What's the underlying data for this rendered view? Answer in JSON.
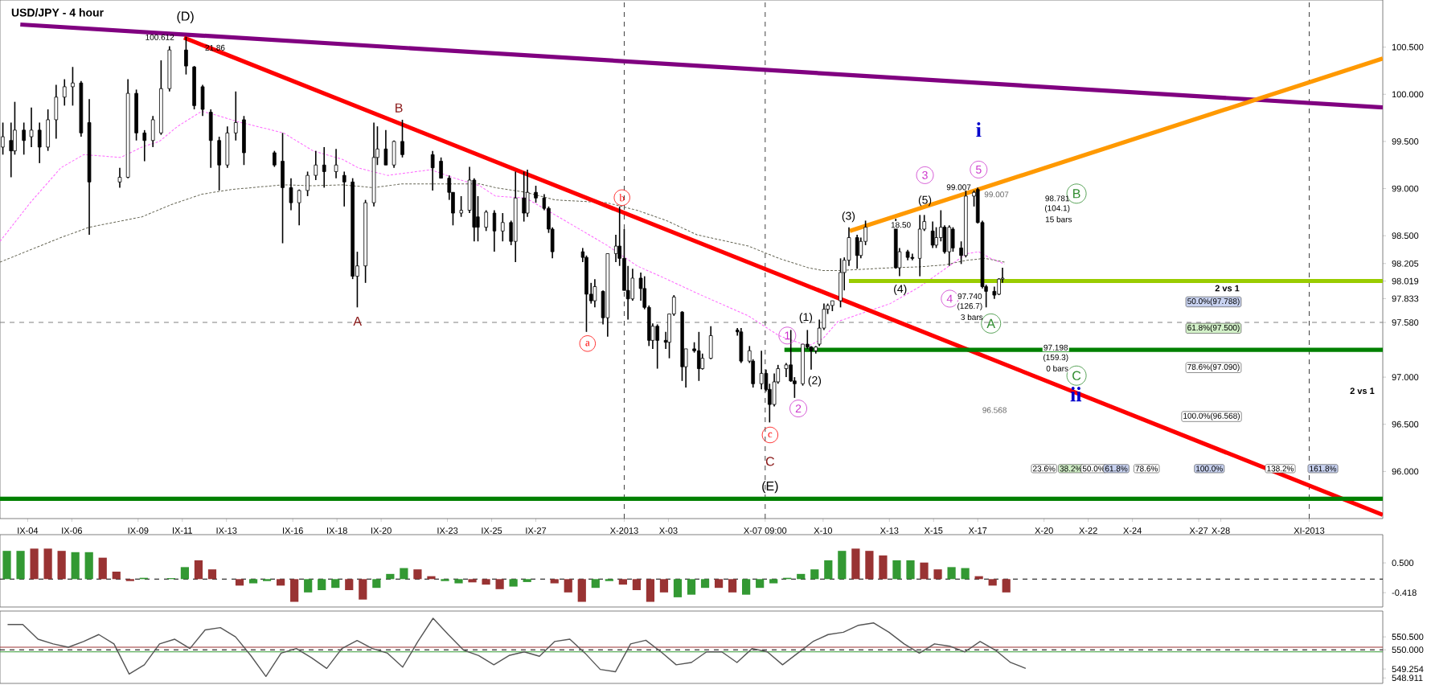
{
  "chart_data": [
    {
      "type": "candlestick",
      "title": "USD/JPY - 4 hour",
      "x": [
        "2013-09-02T21:00",
        "2013-09-03T06:00",
        "2013-09-03T10:00",
        "2013-09-03T20:00",
        "2013-09-04T04:00",
        "2013-09-04T13:00",
        "2013-09-04T22:00",
        "2013-09-05T07:00",
        "2013-09-05T16:00",
        "2013-09-06T01:00",
        "2013-09-06T10:00",
        "2013-09-06T19:00",
        "2013-09-08T04:00",
        "2013-09-08T13:00",
        "2013-09-08T22:00",
        "2013-09-09T07:00",
        "2013-09-09T16:00",
        "2013-09-10T01:00",
        "2013-09-10T10:00",
        "2013-09-11T04:00",
        "2013-09-11T13:00",
        "2013-09-11T22:00",
        "2013-09-12T07:00",
        "2013-09-12T16:00",
        "2013-09-13T01:00",
        "2013-09-13T10:00",
        "2013-09-13T19:00",
        "2013-09-15T04:00",
        "2013-09-15T13:00",
        "2013-09-15T22:00",
        "2013-09-16T07:00",
        "2013-09-16T16:00",
        "2013-09-17T01:00",
        "2013-09-17T10:00",
        "2013-09-17T23:00",
        "2013-09-18T08:00",
        "2013-09-18T17:00",
        "2013-09-18T22:00",
        "2013-09-19T07:00",
        "2013-09-19T16:00",
        "2013-09-19T20:00",
        "2013-09-20T05:00",
        "2013-09-20T14:00",
        "2013-09-20T23:00",
        "2013-09-22T08:00",
        "2013-09-22T17:00",
        "2013-09-23T02:00",
        "2013-09-23T06:00",
        "2013-09-23T15:00",
        "2013-09-24T00:00",
        "2013-09-24T05:00",
        "2013-09-24T09:00",
        "2013-09-24T18:00",
        "2013-09-25T03:00",
        "2013-09-25T12:00",
        "2013-09-25T21:00",
        "2013-09-26T02:00",
        "2013-09-26T11:00",
        "2013-09-26T15:00",
        "2013-09-27T00:00",
        "2013-09-27T09:00",
        "2013-09-27T14:00",
        "2013-09-27T18:00",
        "2013-09-29T03:00",
        "2013-09-29T07:00",
        "2013-09-29T12:00",
        "2013-09-29T16:00",
        "2013-09-30T01:00",
        "2013-09-30T06:00",
        "2013-09-30T15:00",
        "2013-09-30T19:00",
        "2013-10-01T00:00",
        "2013-10-01T04:00",
        "2013-10-01T09:00",
        "2013-10-01T18:00",
        "2013-10-01T22:00",
        "2013-10-02T03:00",
        "2013-10-02T07:00",
        "2013-10-02T12:00",
        "2013-10-02T21:00",
        "2013-10-03T01:00",
        "2013-10-03T06:00",
        "2013-10-03T15:00",
        "2013-10-03T19:00",
        "2013-10-04T04:00",
        "2013-10-04T09:00",
        "2013-10-04T13:00",
        "2013-10-04T22:00",
        "2013-10-06T03:00",
        "2013-10-06T07:00",
        "2013-10-06T16:00",
        "2013-10-06T20:00",
        "2013-10-07T05:00",
        "2013-10-07T10:00",
        "2013-10-07T14:00",
        "2013-10-07T19:00",
        "2013-10-07T23:00",
        "2013-10-08T08:00",
        "2013-10-08T13:00",
        "2013-10-08T17:00",
        "2013-10-09T02:00",
        "2013-10-09T07:00",
        "2013-10-09T11:00",
        "2013-10-09T16:00",
        "2013-10-09T20:00",
        "2013-10-10T01:00",
        "2013-10-10T05:00",
        "2013-10-10T10:00",
        "2013-10-10T19:00",
        "2013-10-10T23:00",
        "2013-10-11T04:00",
        "2013-10-11T13:00",
        "2013-10-11T17:00",
        "2013-10-11T22:00",
        "2013-10-13T07:00",
        "2013-10-13T11:00",
        "2013-10-13T20:00",
        "2013-10-14T01:00",
        "2013-10-14T09:00",
        "2013-10-14T14:00",
        "2013-10-14T23:00",
        "2013-10-15T03:00",
        "2013-10-15T08:00",
        "2013-10-15T12:00",
        "2013-10-15T17:00",
        "2013-10-15T21:00",
        "2013-10-16T06:00",
        "2013-10-16T11:00",
        "2013-10-16T20:00",
        "2013-10-17T00:00",
        "2013-10-17T05:00",
        "2013-10-17T09:00",
        "2013-10-17T18:00",
        "2013-10-17T23:00",
        "2013-10-18T03:00"
      ],
      "ohlc": [
        [
          99.44,
          99.7,
          99.36,
          99.55
        ],
        [
          99.51,
          99.7,
          99.12,
          99.4
        ],
        [
          99.4,
          99.92,
          99.36,
          99.62
        ],
        [
          99.62,
          99.7,
          99.36,
          99.51
        ],
        [
          99.55,
          99.86,
          99.44,
          99.62
        ],
        [
          99.62,
          99.7,
          99.27,
          99.44
        ],
        [
          99.44,
          99.84,
          99.4,
          99.73
        ],
        [
          99.73,
          100.1,
          99.53,
          99.97
        ],
        [
          99.97,
          100.16,
          99.88,
          100.08
        ],
        [
          100.08,
          100.29,
          99.88,
          100.12
        ],
        [
          100.12,
          100.14,
          99.55,
          99.59
        ],
        [
          99.7,
          99.95,
          98.51,
          99.07
        ],
        [
          99.07,
          99.22,
          99.01,
          99.12
        ],
        [
          99.12,
          100.16,
          99.11,
          100.01
        ],
        [
          100.01,
          100.05,
          99.51,
          99.59
        ],
        [
          99.59,
          99.62,
          99.29,
          99.51
        ],
        [
          99.51,
          99.77,
          99.44,
          99.73
        ],
        [
          99.59,
          100.36,
          99.57,
          100.06
        ],
        [
          100.06,
          100.51,
          100.03,
          100.47
        ],
        [
          100.47,
          100.61,
          100.21,
          100.3
        ],
        [
          100.29,
          100.3,
          99.84,
          99.88
        ],
        [
          100.08,
          100.1,
          99.77,
          99.84
        ],
        [
          99.81,
          99.84,
          99.22,
          99.51
        ],
        [
          99.51,
          99.55,
          98.98,
          99.25
        ],
        [
          99.25,
          99.66,
          99.22,
          99.59
        ],
        [
          99.59,
          100.03,
          99.51,
          99.7
        ],
        [
          99.73,
          99.77,
          99.25,
          99.38
        ],
        [
          99.38,
          99.4,
          99.23,
          99.25
        ],
        [
          99.29,
          99.59,
          98.42,
          99.01
        ],
        [
          99.01,
          99.11,
          98.77,
          98.85
        ],
        [
          98.85,
          98.99,
          98.61,
          98.98
        ],
        [
          98.98,
          99.18,
          98.92,
          99.14
        ],
        [
          99.14,
          99.4,
          99.09,
          99.25
        ],
        [
          99.25,
          99.44,
          99.01,
          99.18
        ],
        [
          99.18,
          99.42,
          99.11,
          99.25
        ],
        [
          99.14,
          99.18,
          98.81,
          99.07
        ],
        [
          99.07,
          99.11,
          98.04,
          98.07
        ],
        [
          98.07,
          98.33,
          97.74,
          98.18
        ],
        [
          98.18,
          98.88,
          98.0,
          98.85
        ],
        [
          98.85,
          99.7,
          98.81,
          99.33
        ],
        [
          99.33,
          99.66,
          99.25,
          99.42
        ],
        [
          99.42,
          99.62,
          99.25,
          99.25
        ],
        [
          99.25,
          99.51,
          99.22,
          99.5
        ],
        [
          99.5,
          99.73,
          99.33,
          99.36
        ],
        [
          99.36,
          99.4,
          98.98,
          99.22
        ],
        [
          99.29,
          99.33,
          99.11,
          99.11
        ],
        [
          99.11,
          99.14,
          98.88,
          98.96
        ],
        [
          98.96,
          98.96,
          98.61,
          98.74
        ],
        [
          98.74,
          98.92,
          98.7,
          98.77
        ],
        [
          98.77,
          99.23,
          98.74,
          99.09
        ],
        [
          99.09,
          99.11,
          98.44,
          98.59
        ],
        [
          98.7,
          98.92,
          98.44,
          98.59
        ],
        [
          98.59,
          98.77,
          98.55,
          98.75
        ],
        [
          98.74,
          98.77,
          98.33,
          98.55
        ],
        [
          98.55,
          98.74,
          98.44,
          98.64
        ],
        [
          98.64,
          98.66,
          98.4,
          98.44
        ],
        [
          98.44,
          99.18,
          98.22,
          98.9
        ],
        [
          98.9,
          99.18,
          98.65,
          98.74
        ],
        [
          98.74,
          99.2,
          98.7,
          98.96
        ],
        [
          98.96,
          99.03,
          98.85,
          98.9
        ],
        [
          98.9,
          98.94,
          98.77,
          98.79
        ],
        [
          98.79,
          98.81,
          98.53,
          98.57
        ],
        [
          98.57,
          98.59,
          98.26,
          98.33
        ],
        [
          98.33,
          98.37,
          98.22,
          98.27
        ],
        [
          98.27,
          98.29,
          97.48,
          97.88
        ],
        [
          97.88,
          98.0,
          97.78,
          97.81
        ],
        [
          97.81,
          98.04,
          97.74,
          97.96
        ],
        [
          97.91,
          97.92,
          97.56,
          97.63
        ],
        [
          97.63,
          98.31,
          97.43,
          98.31
        ],
        [
          98.31,
          98.51,
          98.22,
          98.39
        ],
        [
          98.39,
          98.81,
          98.18,
          98.26
        ],
        [
          98.26,
          98.57,
          97.92,
          97.92
        ],
        [
          97.92,
          98.18,
          97.61,
          97.83
        ],
        [
          97.83,
          98.15,
          97.81,
          98.05
        ],
        [
          98.05,
          98.11,
          97.81,
          97.94
        ],
        [
          97.94,
          98.07,
          97.72,
          97.74
        ],
        [
          97.74,
          97.76,
          97.33,
          97.39
        ],
        [
          97.39,
          97.57,
          97.3,
          97.54
        ],
        [
          97.54,
          97.56,
          97.09,
          97.39
        ],
        [
          97.39,
          97.48,
          97.3,
          97.37
        ],
        [
          97.37,
          97.67,
          97.2,
          97.67
        ],
        [
          97.67,
          97.87,
          97.65,
          97.85
        ],
        [
          97.69,
          97.7,
          96.96,
          97.11
        ],
        [
          97.11,
          97.3,
          96.89,
          97.3
        ],
        [
          97.3,
          97.37,
          97.26,
          97.28
        ],
        [
          97.28,
          97.48,
          96.96,
          97.09
        ],
        [
          97.09,
          97.25,
          97.08,
          97.2
        ],
        [
          97.2,
          97.54,
          97.19,
          97.44
        ],
        [
          97.5,
          97.52,
          97.44,
          97.48
        ],
        [
          97.48,
          97.52,
          97.15,
          97.17
        ],
        [
          97.17,
          97.33,
          97.15,
          97.28
        ],
        [
          97.17,
          97.19,
          96.89,
          96.93
        ],
        [
          96.93,
          97.28,
          96.87,
          97.04
        ],
        [
          97.04,
          97.08,
          96.85,
          96.87
        ],
        [
          96.87,
          96.93,
          96.52,
          96.71
        ],
        [
          96.71,
          97.04,
          96.69,
          96.95
        ],
        [
          96.95,
          97.13,
          96.93,
          97.09
        ],
        [
          97.09,
          97.15,
          97.0,
          97.13
        ],
        [
          97.13,
          97.5,
          96.95,
          96.96
        ],
        [
          96.96,
          97.0,
          96.78,
          96.93
        ],
        [
          96.93,
          97.35,
          96.91,
          97.35
        ],
        [
          97.35,
          97.5,
          97.3,
          97.32
        ],
        [
          97.32,
          97.33,
          97.08,
          97.28
        ],
        [
          97.28,
          97.33,
          97.25,
          97.32
        ],
        [
          97.35,
          97.61,
          97.33,
          97.52
        ],
        [
          97.52,
          97.78,
          97.5,
          97.72
        ],
        [
          97.72,
          97.78,
          97.67,
          97.76
        ],
        [
          97.76,
          97.81,
          97.7,
          97.81
        ],
        [
          97.81,
          98.26,
          97.74,
          98.11
        ],
        [
          98.11,
          98.27,
          97.92,
          98.24
        ],
        [
          98.24,
          98.59,
          98.18,
          98.48
        ],
        [
          98.48,
          98.51,
          98.15,
          98.29
        ],
        [
          98.29,
          98.48,
          98.26,
          98.44
        ],
        [
          98.44,
          98.66,
          98.4,
          98.59
        ],
        [
          98.64,
          98.68,
          98.15,
          98.16
        ],
        [
          98.16,
          98.37,
          98.07,
          98.33
        ],
        [
          98.33,
          98.35,
          98.24,
          98.27
        ],
        [
          98.27,
          98.31,
          98.24,
          98.26
        ],
        [
          98.26,
          98.72,
          98.07,
          98.57
        ],
        [
          98.57,
          98.72,
          98.55,
          98.65
        ],
        [
          98.55,
          98.65,
          98.37,
          98.4
        ],
        [
          98.4,
          98.59,
          98.37,
          98.48
        ],
        [
          98.48,
          98.77,
          98.44,
          98.59
        ],
        [
          98.59,
          98.61,
          98.31,
          98.33
        ],
        [
          98.33,
          98.61,
          98.18,
          98.59
        ],
        [
          98.57,
          98.59,
          98.33,
          98.37
        ],
        [
          98.37,
          98.44,
          98.2,
          98.29
        ],
        [
          98.29,
          98.98,
          98.27,
          98.92
        ],
        [
          98.92,
          98.98,
          98.81,
          98.96
        ],
        [
          98.99,
          99.01,
          98.63,
          98.64
        ],
        [
          98.64,
          98.66,
          97.94,
          97.96
        ],
        [
          97.96,
          97.98,
          97.74,
          97.91
        ],
        [
          97.91,
          97.96,
          97.83,
          97.87
        ],
        [
          97.88,
          98.05,
          97.87,
          98.04
        ],
        [
          98.04,
          98.16,
          98.0,
          98.05
        ]
      ],
      "series": [
        {
          "type": "line",
          "color": "#ff66ff",
          "line_style": "dashed",
          "x": [
            "2013-09-02T18:00",
            "2013-09-04T03:00",
            "2013-09-05T12:00",
            "2013-09-06T13:00",
            "2013-09-08T05:00",
            "2013-09-09T04:00",
            "2013-09-09T23:00",
            "2013-09-10T19:00",
            "2013-09-11T21:00",
            "2013-09-12T16:00",
            "2013-09-13T12:00",
            "2013-09-15T14:00",
            "2013-09-16T22:00",
            "2013-09-18T06:00",
            "2013-09-18T23:00",
            "2013-09-19T15:00",
            "2013-09-20T07:00",
            "2013-09-22T06:00",
            "2013-09-23T08:00",
            "2013-09-24T11:00",
            "2013-09-25T04:00",
            "2013-09-26T13:00",
            "2013-09-27T21:00",
            "2013-09-30T05:00",
            "2013-10-01T14:00",
            "2013-10-02T22:00",
            "2013-10-04T07:00",
            "2013-10-06T15:00",
            "2013-10-08T00:00",
            "2013-10-09T08:00",
            "2013-10-10T00:00",
            "2013-10-10T16:00",
            "2013-10-13T01:00",
            "2013-10-14T09:00",
            "2013-10-15T17:00",
            "2013-10-16T12:00",
            "2013-10-17T01:00",
            "2013-10-17T14:00",
            "2013-10-18T05:00"
          ],
          "values": [
            98.44,
            98.85,
            99.22,
            99.36,
            99.33,
            99.44,
            99.5,
            99.66,
            99.82,
            99.77,
            99.71,
            99.59,
            99.4,
            99.31,
            99.22,
            null,
            99.14,
            99.2,
            99.11,
            99.03,
            98.92,
            98.9,
            98.72,
            98.4,
            98.18,
            98.04,
            97.89,
            97.65,
            97.44,
            97.33,
            97.41,
            97.59,
            97.78,
            97.96,
            98.18,
            98.31,
            98.33,
            98.26,
            98.2
          ]
        },
        {
          "type": "line",
          "color": "#666655",
          "line_style": "dashed",
          "x": [
            "2013-09-02T18:00",
            "2013-09-04T03:00",
            "2013-09-05T12:00",
            "2013-09-06T19:00",
            "2013-09-09T04:00",
            "2013-09-10T12:00",
            "2013-09-11T21:00",
            "2013-09-13T05:00",
            "2013-09-15T14:00",
            "2013-09-16T22:00",
            "2013-09-18T06:00",
            "2013-09-19T15:00",
            "2013-09-20T23:00",
            "2013-09-23T08:00",
            "2013-09-24T11:00",
            "2013-09-25T04:00",
            "2013-09-26T13:00",
            "2013-09-27T21:00",
            "2013-09-30T05:00",
            "2013-10-01T14:00",
            "2013-10-02T22:00",
            "2013-10-04T07:00",
            "2013-10-06T15:00",
            "2013-10-08T00:00",
            "2013-10-09T08:00",
            "2013-10-10T00:00",
            "2013-10-10T16:00",
            "2013-10-13T01:00",
            "2013-10-14T09:00",
            "2013-10-15T12:00",
            "2013-10-16T12:00",
            "2013-10-17T08:00",
            "2013-10-18T05:00"
          ],
          "values": [
            98.22,
            98.35,
            98.48,
            98.59,
            98.7,
            98.83,
            98.94,
            98.99,
            99.04,
            99.03,
            99.04,
            99.01,
            99.05,
            99.05,
            99.05,
            99.01,
            98.96,
            98.88,
            98.85,
            98.77,
            98.66,
            98.51,
            98.39,
            98.26,
            98.16,
            98.13,
            98.13,
            98.16,
            98.17,
            98.19,
            98.24,
            98.26,
            98.22
          ]
        },
        {
          "type": "line",
          "color": "#800080",
          "line_style": "solid",
          "x": [
            "2013-09-03T16:00",
            "2013-11-04T08:00"
          ],
          "values": [
            100.74,
            99.86
          ]
        },
        {
          "type": "line",
          "color": "#ff0000",
          "line_style": "solid",
          "x": [
            "2013-09-11T02:00",
            "2013-11-04T08:00"
          ],
          "values": [
            100.6,
            95.54
          ]
        },
        {
          "type": "line",
          "color": "#ff9900",
          "line_style": "solid",
          "x": [
            "2013-10-11T05:00",
            "2013-11-04T08:00"
          ],
          "values": [
            98.55,
            100.38
          ]
        },
        {
          "type": "line",
          "color": "#99cc00",
          "line_style": "solid",
          "x": [
            "2013-10-11T04:00",
            "2013-11-04T08:00"
          ],
          "values": [
            98.02,
            98.02
          ]
        },
        {
          "type": "line",
          "color": "#008000",
          "line_style": "solid",
          "x": [
            "2013-10-08T06:00",
            "2013-11-04T08:00"
          ],
          "values": [
            97.29,
            97.29
          ]
        },
        {
          "type": "line",
          "color": "#008000",
          "line_style": "solid",
          "x": [
            "2013-09-02T18:00",
            "2013-11-04T08:00"
          ],
          "values": [
            95.71,
            95.71
          ]
        }
      ],
      "xlim": [
        "2013-09-02T18:00",
        "2013-11-04T08:00"
      ],
      "ylim": [
        95.5,
        101.0
      ],
      "xticks": [
        {
          "value": "2013-09-04",
          "label": "IX-04"
        },
        {
          "value": "2013-09-06",
          "label": "IX-06"
        },
        {
          "value": "2013-09-09",
          "label": "IX-09"
        },
        {
          "value": "2013-09-11",
          "label": "IX-11"
        },
        {
          "value": "2013-09-13",
          "label": "IX-13"
        },
        {
          "value": "2013-09-16",
          "label": "IX-16"
        },
        {
          "value": "2013-09-18",
          "label": "IX-18"
        },
        {
          "value": "2013-09-20",
          "label": "IX-20"
        },
        {
          "value": "2013-09-23",
          "label": "IX-23"
        },
        {
          "value": "2013-09-25",
          "label": "IX-25"
        },
        {
          "value": "2013-09-27",
          "label": "IX-27"
        },
        {
          "value": "2013-10-01",
          "label": "X-2013"
        },
        {
          "value": "2013-10-03",
          "label": "X-03"
        },
        {
          "value": "2013-10-07T09:00",
          "label": "X-07 09:00"
        },
        {
          "value": "2013-10-10",
          "label": "X-10"
        },
        {
          "value": "2013-10-13",
          "label": "X-13"
        },
        {
          "value": "2013-10-15",
          "label": "X-15"
        },
        {
          "value": "2013-10-17",
          "label": "X-17"
        },
        {
          "value": "2013-10-20",
          "label": "X-20"
        },
        {
          "value": "2013-10-22",
          "label": "X-22"
        },
        {
          "value": "2013-10-24",
          "label": "X-24"
        },
        {
          "value": "2013-10-27",
          "label": "X-27"
        },
        {
          "value": "2013-10-28",
          "label": "X-28"
        },
        {
          "value": "2013-11-01",
          "label": "XI-2013"
        }
      ],
      "yticks": [
        {
          "value": 96,
          "label": "96.000"
        },
        {
          "value": 96.5,
          "label": "96.500"
        },
        {
          "value": 97,
          "label": "97.000"
        },
        {
          "value": 97.58,
          "label": "97.580"
        },
        {
          "value": 97.833,
          "label": "97.833"
        },
        {
          "value": 98.019,
          "label": "98.019"
        },
        {
          "value": 98.205,
          "label": "98.205"
        },
        {
          "value": 98.5,
          "label": "98.500"
        },
        {
          "value": 99,
          "label": "99.000"
        },
        {
          "value": 99.5,
          "label": "99.500"
        },
        {
          "value": 100,
          "label": "100.000"
        },
        {
          "value": 100.5,
          "label": "100.500"
        }
      ],
      "ref_lines": [
        {
          "axis": "y",
          "value": 97.58,
          "color": "#808080",
          "line_style": "dashed"
        },
        {
          "axis": "x",
          "value": "2013-10-01",
          "color": "#404040",
          "line_style": "dashed"
        },
        {
          "axis": "x",
          "value": "2013-10-07T09:00",
          "color": "#404040",
          "line_style": "dashed"
        },
        {
          "axis": "x",
          "value": "2013-11-01",
          "color": "#404040",
          "line_style": "dashed"
        }
      ],
      "annotations": [
        "(D)",
        "100.612",
        "21.86",
        "A",
        "B",
        "a",
        "b",
        "c",
        "C",
        "(E)",
        "(1)",
        "(2)",
        "(3)",
        "(4)",
        "(5)",
        "1",
        "2",
        "3",
        "4",
        "5",
        "i",
        "ii",
        "A",
        "B",
        "C",
        "18.50",
        "99.007",
        "99.007",
        "98.781",
        "(104.1)",
        "15 bars",
        "97.740",
        "(126.7)",
        "3 bars",
        "97.198",
        "(159.3)",
        "0 bars",
        "96.568",
        "50.0%(97.788)",
        "61.8%(97.500)",
        "78.6%(97.090)",
        "100.0%(96.568)",
        "2 vs 1",
        "2 vs 1",
        "23.6%",
        "38.2%",
        "50.0%",
        "61.8%",
        "78.6%",
        "100.0%",
        "138.2%",
        "161.8%"
      ]
    },
    {
      "type": "bar",
      "categories": [
        null,
        null,
        null,
        null,
        null,
        null,
        null,
        null,
        null,
        null,
        null,
        null,
        null,
        null,
        null,
        null,
        null,
        null,
        null,
        null,
        null,
        null,
        null,
        null,
        null,
        null,
        null,
        null,
        null,
        null,
        null,
        null,
        null,
        null,
        null,
        null,
        null,
        null,
        null,
        null,
        null,
        null,
        null,
        null,
        null,
        null,
        null,
        null,
        null,
        null,
        null,
        null,
        null,
        null,
        null,
        null,
        null,
        null,
        null,
        null,
        null,
        null,
        null,
        null,
        null,
        null,
        null,
        null,
        null,
        null,
        null,
        null,
        null,
        null,
        null,
        null,
        null,
        null,
        null,
        null,
        null,
        null,
        null,
        null,
        null,
        null,
        null,
        null,
        null,
        null,
        null,
        null,
        null,
        null,
        null,
        null,
        null,
        null,
        null,
        null,
        null
      ],
      "values": [
        0.87,
        0.87,
        0.94,
        0.94,
        0.87,
        0.83,
        0.83,
        0.66,
        0.23,
        -0.06,
        0.04,
        0,
        0.03,
        0.37,
        0.58,
        0.3,
        null,
        -0.2,
        -0.13,
        -0.06,
        -0.2,
        -0.7,
        -0.41,
        -0.34,
        -0.27,
        -0.34,
        -0.63,
        -0.27,
        0.16,
        0.34,
        0.3,
        0.09,
        -0.06,
        -0.13,
        -0.1,
        -0.17,
        -0.31,
        -0.23,
        -0.09,
        0,
        -0.13,
        -0.41,
        -0.7,
        -0.27,
        -0.06,
        -0.17,
        -0.34,
        -0.7,
        -0.41,
        -0.56,
        -0.48,
        -0.27,
        -0.27,
        -0.41,
        -0.48,
        -0.27,
        -0.13,
        0.04,
        0.16,
        0.3,
        0.58,
        0.87,
        0.94,
        0.87,
        0.73,
        0.58,
        0.58,
        0.51,
        0.3,
        0.37,
        0.34,
        0.09,
        -0.2,
        -0.41,
        null,
        null,
        null,
        null,
        null,
        null,
        null,
        null,
        null,
        null,
        null,
        null,
        null,
        null,
        null,
        null,
        null,
        null,
        null,
        null,
        null,
        null,
        null,
        null,
        null,
        null,
        null
      ],
      "colors": [
        "#339933",
        "#339933",
        "#993333",
        "#993333",
        "#993333",
        "#339933",
        "#339933",
        "#993333",
        "#993333",
        "#993333",
        "#339933",
        "#339933",
        "#339933",
        "#339933",
        "#993333",
        "#993333",
        "#993333",
        "#993333",
        "#339933",
        "#339933",
        "#993333",
        "#993333",
        "#339933",
        "#339933",
        "#339933",
        "#993333",
        "#993333",
        "#339933",
        "#339933",
        "#339933",
        "#993333",
        "#993333",
        "#339933",
        "#339933",
        "#993333",
        "#993333",
        "#993333",
        "#339933",
        "#339933",
        "#339933",
        "#993333",
        "#993333",
        "#993333",
        "#339933",
        "#339933",
        "#993333",
        "#993333",
        "#993333",
        "#993333",
        "#339933",
        "#339933",
        "#339933",
        "#993333",
        "#993333",
        "#339933",
        "#339933",
        "#339933",
        "#339933",
        "#339933",
        "#339933",
        "#339933",
        "#339933",
        "#993333",
        "#993333",
        "#993333",
        "#339933",
        "#339933",
        "#993333",
        "#993333",
        "#339933",
        "#339933",
        "#993333",
        "#993333",
        "#993333",
        "#339933",
        "#339933",
        "#339933",
        "#339933",
        "#339933",
        "#339933",
        "#339933",
        "#339933",
        "#339933",
        "#339933",
        "#339933",
        "#339933",
        "#339933",
        "#339933",
        "#339933",
        "#339933",
        "#339933",
        "#339933",
        "#339933",
        "#339933",
        "#339933",
        "#339933",
        "#339933",
        "#339933",
        "#339933",
        "#339933",
        "#339933"
      ],
      "ylim": [
        -0.86,
        1.37
      ],
      "yticks": [
        {
          "value": -0.418,
          "label": "-0.418"
        },
        {
          "value": 0.5,
          "label": "0.500"
        }
      ],
      "tick_labels": "y",
      "ref_lines": [
        {
          "axis": "y",
          "value": 0,
          "color": "#000000",
          "line_style": "dashed"
        }
      ]
    },
    {
      "type": "line",
      "categories": [
        null,
        null,
        null,
        null,
        null,
        null,
        null,
        null,
        null,
        null,
        null,
        null,
        null,
        null,
        null,
        null,
        null,
        null,
        null,
        null,
        null,
        null,
        null,
        null,
        null,
        null,
        null,
        null,
        null,
        null,
        null,
        null,
        null,
        null,
        null,
        null,
        null,
        null,
        null,
        null,
        null,
        null,
        null,
        null,
        null,
        null,
        null,
        null,
        null,
        null,
        null,
        null,
        null,
        null,
        null,
        null,
        null,
        null,
        null,
        null,
        null,
        null,
        null,
        null,
        null,
        null,
        null,
        null,
        null,
        null,
        null,
        null,
        null,
        null,
        null,
        null,
        null,
        null,
        null,
        null,
        null,
        null,
        null,
        null,
        null,
        null,
        null,
        null,
        null,
        null,
        null
      ],
      "series": [
        {
          "color": "#555555",
          "values": [
            550.98,
            550.98,
            550.41,
            550.23,
            550.1,
            550.32,
            550.59,
            550.23,
            549.06,
            549.42,
            550.23,
            550.41,
            550.05,
            550.77,
            550.86,
            550.5,
            549.78,
            548.97,
            549.87,
            550.05,
            549.69,
            549.28,
            550.05,
            550.36,
            550.05,
            549.87,
            549.33,
            550.32,
            551.22,
            550.59,
            549.99,
            549.78,
            549.42,
            549.78,
            549.92,
            549.75,
            550.32,
            550.41,
            549.87,
            549.24,
            549.15,
            550.23,
            550.37,
            549.92,
            549.42,
            549.51,
            549.92,
            549.92,
            549.51,
            550.05,
            549.92,
            549.42,
            549.87,
            550.32,
            550.59,
            550.68,
            550.95,
            551.04,
            550.68,
            550.23,
            549.87,
            550.23,
            550.14,
            549.92,
            550.32,
            549.99,
            549.51,
            549.28,
            null,
            null,
            null,
            null,
            null,
            null,
            null,
            null,
            null,
            null,
            null,
            null,
            null,
            null,
            null,
            null,
            null,
            null,
            null,
            null,
            null,
            null,
            null
          ]
        }
      ],
      "ylim": [
        548.7,
        551.5
      ],
      "yticks": [
        {
          "value": 548.911,
          "label": "548.911"
        },
        {
          "value": 549.254,
          "label": "549.254"
        },
        {
          "value": 550,
          "label": "550.000"
        },
        {
          "value": 550.5,
          "label": "550.500"
        }
      ],
      "tick_labels": "y",
      "ref_lines": [
        {
          "axis": "y",
          "value": 550,
          "color": "#000000",
          "line_style": "dashed"
        },
        {
          "axis": "y",
          "value": 550.1,
          "color": "#993333",
          "line_style": "solid"
        },
        {
          "axis": "y",
          "value": 549.92,
          "color": "#339933",
          "line_style": "solid"
        }
      ]
    }
  ]
}
